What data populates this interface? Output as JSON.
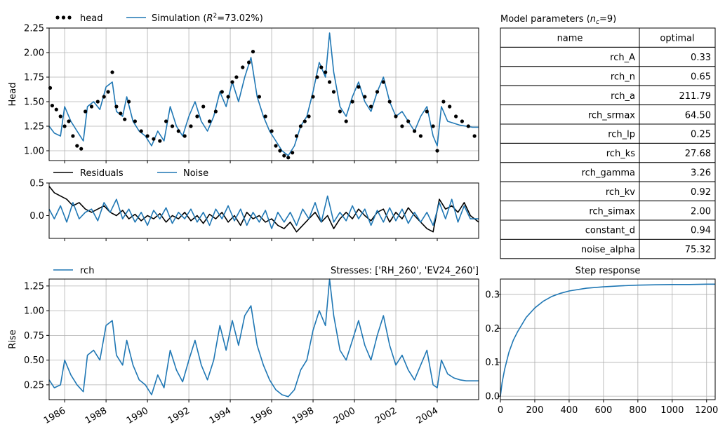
{
  "colors": {
    "observed": "#000000",
    "simulated": "#1f77b4",
    "residuals": "#000000",
    "noise": "#1f77b4",
    "grid": "#b0b0b0"
  },
  "chart_data": [
    {
      "id": "head",
      "type": "scatter+line",
      "ylabel": "Head",
      "ylim": [
        0.9,
        2.25
      ],
      "yticks": [
        "1.00",
        "1.25",
        "1.50",
        "1.75",
        "2.00",
        "2.25"
      ],
      "xlim": [
        1985.25,
        2006.0
      ],
      "grid": true,
      "legend": {
        "items": [
          {
            "label": "head",
            "style": "dots"
          },
          {
            "label": "Simulation (R²=73.02%)",
            "style": "line"
          }
        ],
        "placement": "above-left"
      },
      "series": [
        {
          "name": "head",
          "kind": "points",
          "x": [
            1985.3,
            1985.4,
            1985.6,
            1985.8,
            1986.0,
            1986.2,
            1986.4,
            1986.6,
            1986.8,
            1987.0,
            1987.3,
            1987.6,
            1987.9,
            1988.1,
            1988.3,
            1988.5,
            1988.7,
            1988.9,
            1989.1,
            1989.4,
            1989.7,
            1990.0,
            1990.3,
            1990.6,
            1990.9,
            1991.2,
            1991.5,
            1991.8,
            1992.1,
            1992.4,
            1992.7,
            1993.0,
            1993.3,
            1993.6,
            1993.9,
            1994.1,
            1994.3,
            1994.6,
            1994.9,
            1995.1,
            1995.4,
            1995.7,
            1996.0,
            1996.2,
            1996.4,
            1996.6,
            1996.8,
            1997.0,
            1997.2,
            1997.4,
            1997.6,
            1997.8,
            1998.0,
            1998.2,
            1998.4,
            1998.6,
            1998.8,
            1999.0,
            1999.3,
            1999.6,
            1999.9,
            2000.2,
            2000.5,
            2000.8,
            2001.1,
            2001.4,
            2001.7,
            2002.0,
            2002.3,
            2002.6,
            2002.9,
            2003.2,
            2003.5,
            2003.8,
            2004.0,
            2004.3,
            2004.6,
            2004.9,
            2005.2,
            2005.5,
            2005.8
          ],
          "y": [
            1.64,
            1.46,
            1.42,
            1.35,
            1.25,
            1.3,
            1.15,
            1.05,
            1.02,
            1.4,
            1.45,
            1.5,
            1.55,
            1.6,
            1.8,
            1.45,
            1.38,
            1.32,
            1.5,
            1.3,
            1.2,
            1.15,
            1.12,
            1.1,
            1.3,
            1.25,
            1.2,
            1.15,
            1.25,
            1.35,
            1.45,
            1.3,
            1.4,
            1.6,
            1.55,
            1.7,
            1.75,
            1.85,
            1.9,
            2.01,
            1.55,
            1.35,
            1.2,
            1.05,
            1.0,
            0.95,
            0.93,
            0.98,
            1.15,
            1.25,
            1.3,
            1.35,
            1.55,
            1.75,
            1.85,
            1.8,
            1.7,
            1.6,
            1.4,
            1.3,
            1.5,
            1.65,
            1.55,
            1.45,
            1.6,
            1.7,
            1.5,
            1.35,
            1.25,
            1.3,
            1.2,
            1.15,
            1.4,
            1.25,
            1.0,
            1.5,
            1.45,
            1.35,
            1.3,
            1.25,
            1.15
          ]
        },
        {
          "name": "Simulation (R²=73.02%)",
          "kind": "line",
          "x": [
            1985.25,
            1985.5,
            1985.8,
            1986.0,
            1986.3,
            1986.6,
            1986.9,
            1987.1,
            1987.4,
            1987.7,
            1988.0,
            1988.3,
            1988.5,
            1988.8,
            1989.0,
            1989.3,
            1989.6,
            1989.9,
            1990.2,
            1990.5,
            1990.8,
            1991.1,
            1991.4,
            1991.7,
            1992.0,
            1992.3,
            1992.6,
            1992.9,
            1993.2,
            1993.5,
            1993.8,
            1994.1,
            1994.4,
            1994.7,
            1995.0,
            1995.3,
            1995.6,
            1995.9,
            1996.2,
            1996.5,
            1996.8,
            1997.1,
            1997.4,
            1997.7,
            1998.0,
            1998.3,
            1998.6,
            1998.8,
            1999.0,
            1999.3,
            1999.6,
            1999.9,
            2000.2,
            2000.5,
            2000.8,
            2001.1,
            2001.4,
            2001.7,
            2002.0,
            2002.3,
            2002.6,
            2002.9,
            2003.2,
            2003.5,
            2003.8,
            2004.0,
            2004.2,
            2004.5,
            2004.8,
            2005.1,
            2005.4,
            2005.7,
            2006.0
          ],
          "y": [
            1.25,
            1.18,
            1.15,
            1.45,
            1.3,
            1.2,
            1.1,
            1.45,
            1.5,
            1.42,
            1.65,
            1.7,
            1.4,
            1.35,
            1.55,
            1.3,
            1.2,
            1.15,
            1.05,
            1.2,
            1.1,
            1.45,
            1.25,
            1.15,
            1.35,
            1.5,
            1.3,
            1.2,
            1.35,
            1.6,
            1.45,
            1.7,
            1.5,
            1.75,
            1.95,
            1.55,
            1.35,
            1.2,
            1.1,
            1.0,
            0.95,
            1.05,
            1.25,
            1.35,
            1.6,
            1.9,
            1.75,
            2.2,
            1.8,
            1.45,
            1.35,
            1.55,
            1.7,
            1.5,
            1.4,
            1.6,
            1.75,
            1.5,
            1.35,
            1.4,
            1.3,
            1.2,
            1.35,
            1.45,
            1.15,
            1.05,
            1.45,
            1.3,
            1.28,
            1.26,
            1.25,
            1.24,
            1.24
          ]
        }
      ]
    },
    {
      "id": "residuals",
      "type": "line",
      "ylim": [
        -0.35,
        0.5
      ],
      "yticks": [
        "0.0",
        "0.5"
      ],
      "xlim": [
        1985.25,
        2006.0
      ],
      "grid": false,
      "legend": {
        "items": [
          {
            "label": "Residuals",
            "style": "line-black"
          },
          {
            "label": "Noise",
            "style": "line"
          }
        ],
        "placement": "above-left"
      },
      "series": [
        {
          "name": "Residuals",
          "x": [
            1985.25,
            1985.5,
            1985.8,
            1986.1,
            1986.4,
            1986.7,
            1987.0,
            1987.3,
            1987.6,
            1987.9,
            1988.2,
            1988.5,
            1988.8,
            1989.1,
            1989.4,
            1989.7,
            1990.0,
            1990.3,
            1990.6,
            1990.9,
            1991.2,
            1991.5,
            1991.8,
            1992.1,
            1992.4,
            1992.7,
            1993.0,
            1993.3,
            1993.6,
            1993.9,
            1994.2,
            1994.5,
            1994.8,
            1995.1,
            1995.4,
            1995.7,
            1996.0,
            1996.3,
            1996.6,
            1996.9,
            1997.2,
            1997.5,
            1997.8,
            1998.1,
            1998.4,
            1998.7,
            1999.0,
            1999.3,
            1999.6,
            1999.9,
            2000.2,
            2000.5,
            2000.8,
            2001.1,
            2001.4,
            2001.7,
            2002.0,
            2002.3,
            2002.6,
            2002.9,
            2003.2,
            2003.5,
            2003.8,
            2004.1,
            2004.4,
            2004.7,
            2005.0,
            2005.3,
            2005.6,
            2006.0
          ],
          "y": [
            0.45,
            0.35,
            0.3,
            0.25,
            0.15,
            0.2,
            0.1,
            0.05,
            0.1,
            0.15,
            0.05,
            0.0,
            0.08,
            -0.05,
            0.02,
            -0.08,
            0.0,
            -0.05,
            0.03,
            -0.1,
            0.0,
            -0.05,
            0.05,
            -0.08,
            0.0,
            -0.12,
            0.02,
            -0.05,
            0.05,
            -0.1,
            0.0,
            -0.15,
            0.05,
            -0.05,
            0.0,
            -0.1,
            -0.05,
            -0.15,
            -0.2,
            -0.1,
            -0.25,
            -0.15,
            -0.05,
            0.05,
            -0.1,
            0.0,
            -0.2,
            -0.05,
            0.05,
            -0.05,
            0.1,
            0.0,
            -0.08,
            0.05,
            0.1,
            -0.1,
            0.05,
            -0.05,
            0.12,
            0.0,
            -0.1,
            -0.2,
            -0.25,
            0.25,
            0.1,
            0.15,
            0.05,
            0.2,
            0.0,
            -0.1
          ]
        },
        {
          "name": "Noise",
          "x": [
            1985.25,
            1985.5,
            1985.8,
            1986.1,
            1986.4,
            1986.7,
            1987.0,
            1987.3,
            1987.6,
            1987.9,
            1988.2,
            1988.5,
            1988.8,
            1989.1,
            1989.4,
            1989.7,
            1990.0,
            1990.3,
            1990.6,
            1990.9,
            1991.2,
            1991.5,
            1991.8,
            1992.1,
            1992.4,
            1992.7,
            1993.0,
            1993.3,
            1993.6,
            1993.9,
            1994.2,
            1994.5,
            1994.8,
            1995.1,
            1995.4,
            1995.7,
            1996.0,
            1996.3,
            1996.6,
            1996.9,
            1997.2,
            1997.5,
            1997.8,
            1998.1,
            1998.4,
            1998.7,
            1999.0,
            1999.3,
            1999.6,
            1999.9,
            2000.2,
            2000.5,
            2000.8,
            2001.1,
            2001.4,
            2001.7,
            2002.0,
            2002.3,
            2002.6,
            2002.9,
            2003.2,
            2003.5,
            2003.8,
            2004.1,
            2004.4,
            2004.7,
            2005.0,
            2005.3,
            2005.6,
            2006.0
          ],
          "y": [
            0.1,
            -0.05,
            0.15,
            -0.1,
            0.2,
            -0.05,
            0.05,
            0.1,
            -0.08,
            0.2,
            0.05,
            0.25,
            -0.05,
            0.1,
            -0.1,
            0.05,
            -0.15,
            0.08,
            -0.05,
            0.12,
            -0.12,
            0.05,
            -0.05,
            0.1,
            -0.1,
            0.05,
            -0.15,
            0.1,
            -0.05,
            0.15,
            -0.08,
            0.1,
            -0.15,
            0.05,
            -0.1,
            0.08,
            -0.2,
            0.05,
            -0.1,
            0.05,
            -0.15,
            0.1,
            -0.05,
            0.2,
            -0.1,
            0.3,
            -0.1,
            0.05,
            -0.08,
            0.15,
            -0.05,
            0.1,
            -0.15,
            0.08,
            -0.1,
            0.12,
            -0.08,
            0.1,
            -0.12,
            0.05,
            -0.1,
            0.05,
            -0.15,
            0.2,
            -0.05,
            0.25,
            -0.1,
            0.15,
            -0.05,
            -0.05
          ]
        }
      ]
    },
    {
      "id": "rch",
      "type": "line",
      "ylabel": "Rise",
      "title": "Stresses: ['RH_260', 'EV24_260']",
      "ylim": [
        0.1,
        1.32
      ],
      "yticks": [
        "0.25",
        "0.50",
        "0.75",
        "1.00",
        "1.25"
      ],
      "xlim": [
        1985.25,
        2006.0
      ],
      "xticks": [
        "1986",
        "1988",
        "1990",
        "1992",
        "1994",
        "1996",
        "1998",
        "2000",
        "2002",
        "2004"
      ],
      "grid": true,
      "legend": {
        "items": [
          {
            "label": "rch",
            "style": "line"
          }
        ],
        "placement": "above-left"
      },
      "series": [
        {
          "name": "rch",
          "x": [
            1985.25,
            1985.5,
            1985.8,
            1986.0,
            1986.3,
            1986.6,
            1986.9,
            1987.1,
            1987.4,
            1987.7,
            1988.0,
            1988.3,
            1988.5,
            1988.8,
            1989.0,
            1989.3,
            1989.6,
            1989.9,
            1990.2,
            1990.5,
            1990.8,
            1991.1,
            1991.4,
            1991.7,
            1992.0,
            1992.3,
            1992.6,
            1992.9,
            1993.2,
            1993.5,
            1993.8,
            1994.1,
            1994.4,
            1994.7,
            1995.0,
            1995.3,
            1995.6,
            1995.9,
            1996.2,
            1996.5,
            1996.8,
            1997.1,
            1997.4,
            1997.7,
            1998.0,
            1998.3,
            1998.6,
            1998.8,
            1999.0,
            1999.3,
            1999.6,
            1999.9,
            2000.2,
            2000.5,
            2000.8,
            2001.1,
            2001.4,
            2001.7,
            2002.0,
            2002.3,
            2002.6,
            2002.9,
            2003.2,
            2003.5,
            2003.8,
            2004.0,
            2004.2,
            2004.5,
            2004.8,
            2005.1,
            2005.4,
            2005.7,
            2006.0
          ],
          "y": [
            0.3,
            0.22,
            0.25,
            0.5,
            0.35,
            0.25,
            0.18,
            0.55,
            0.6,
            0.5,
            0.85,
            0.9,
            0.55,
            0.45,
            0.7,
            0.45,
            0.3,
            0.25,
            0.15,
            0.35,
            0.22,
            0.6,
            0.4,
            0.28,
            0.5,
            0.7,
            0.45,
            0.3,
            0.5,
            0.85,
            0.6,
            0.9,
            0.65,
            0.95,
            1.05,
            0.65,
            0.45,
            0.3,
            0.2,
            0.15,
            0.13,
            0.2,
            0.4,
            0.5,
            0.8,
            1.0,
            0.85,
            1.32,
            0.95,
            0.6,
            0.5,
            0.7,
            0.9,
            0.65,
            0.5,
            0.75,
            0.95,
            0.65,
            0.45,
            0.55,
            0.4,
            0.3,
            0.45,
            0.6,
            0.25,
            0.22,
            0.5,
            0.36,
            0.32,
            0.3,
            0.29,
            0.29,
            0.29
          ]
        }
      ]
    },
    {
      "id": "step",
      "type": "line",
      "title": "Step response",
      "xlim": [
        0,
        1250
      ],
      "ylim": [
        -0.01,
        0.345
      ],
      "xticks": [
        "0",
        "200",
        "400",
        "600",
        "800",
        "1000",
        "1200"
      ],
      "yticks": [
        "0.0",
        "0.1",
        "0.2",
        "0.3"
      ],
      "grid": true,
      "series": [
        {
          "name": "step",
          "x": [
            0,
            10,
            25,
            50,
            75,
            100,
            150,
            200,
            250,
            300,
            350,
            400,
            500,
            600,
            700,
            800,
            900,
            1000,
            1100,
            1200,
            1250
          ],
          "y": [
            0.0,
            0.04,
            0.08,
            0.13,
            0.165,
            0.19,
            0.232,
            0.26,
            0.28,
            0.294,
            0.303,
            0.31,
            0.318,
            0.322,
            0.325,
            0.327,
            0.328,
            0.329,
            0.329,
            0.33,
            0.33
          ]
        }
      ]
    }
  ],
  "table": {
    "title": "Model parameters (n_c=9)",
    "title_main": "Model parameters (",
    "title_n": "n",
    "title_sub": "c",
    "title_rest": "=9)",
    "headers": [
      "name",
      "optimal"
    ],
    "rows": [
      [
        "rch_A",
        "0.33"
      ],
      [
        "rch_n",
        "0.65"
      ],
      [
        "rch_a",
        "211.79"
      ],
      [
        "rch_srmax",
        "64.50"
      ],
      [
        "rch_lp",
        "0.25"
      ],
      [
        "rch_ks",
        "27.68"
      ],
      [
        "rch_gamma",
        "3.26"
      ],
      [
        "rch_kv",
        "0.92"
      ],
      [
        "rch_simax",
        "2.00"
      ],
      [
        "constant_d",
        "0.94"
      ],
      [
        "noise_alpha",
        "75.32"
      ]
    ]
  }
}
